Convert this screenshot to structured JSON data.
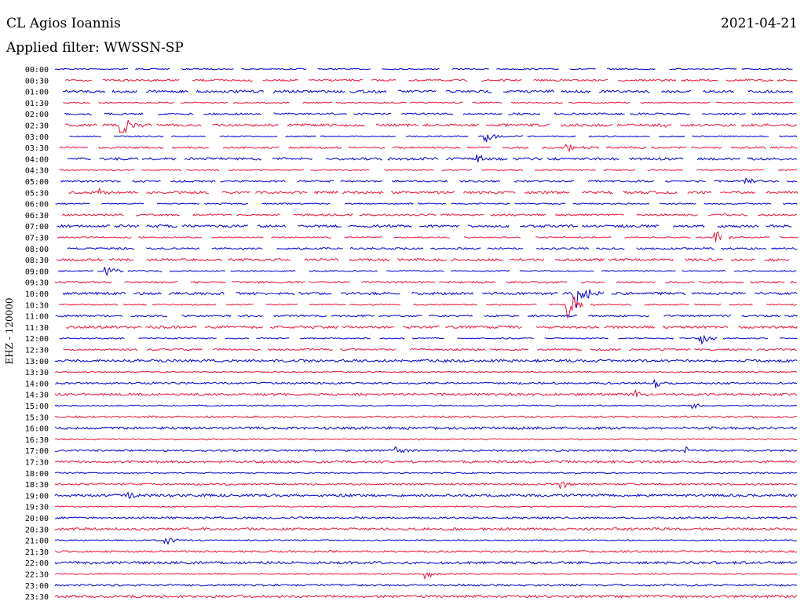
{
  "header": {
    "station": "CL Agios Ioannis",
    "date": "2021-04-21",
    "filter": "Applied filter: WWSSN-SP",
    "channel_label": "EHZ - 120000"
  },
  "colors": {
    "odd": "#0000cc",
    "even": "#e8163c"
  },
  "chart_data": {
    "type": "line",
    "title": "",
    "ylabel": "EHZ - 120000",
    "rows": [
      "00:00",
      "00:30",
      "01:00",
      "01:30",
      "02:00",
      "02:30",
      "03:00",
      "03:30",
      "04:00",
      "04:30",
      "05:00",
      "05:30",
      "06:00",
      "06:30",
      "07:00",
      "07:30",
      "08:00",
      "08:30",
      "09:00",
      "09:30",
      "10:00",
      "10:30",
      "11:00",
      "11:30",
      "12:00",
      "12:30",
      "13:00",
      "13:30",
      "14:00",
      "14:30",
      "15:00",
      "15:30",
      "16:00",
      "16:30",
      "17:00",
      "17:30",
      "18:00",
      "18:30",
      "19:00",
      "19:30",
      "20:00",
      "20:30",
      "21:00",
      "21:30",
      "22:00",
      "22:30",
      "23:00",
      "23:30"
    ],
    "series_colors": [
      "blue",
      "red"
    ],
    "gapped_until_row": "12:30",
    "events": [
      {
        "row": "02:30",
        "x": 0.09,
        "amp": 14
      },
      {
        "row": "03:00",
        "x": 0.58,
        "amp": 8
      },
      {
        "row": "03:30",
        "x": 0.69,
        "amp": 6
      },
      {
        "row": "04:00",
        "x": 0.57,
        "amp": 6
      },
      {
        "row": "02:30",
        "x": 0.81,
        "amp": 5
      },
      {
        "row": "05:00",
        "x": 0.93,
        "amp": 5
      },
      {
        "row": "05:30",
        "x": 0.06,
        "amp": 6
      },
      {
        "row": "07:30",
        "x": 0.89,
        "amp": 9
      },
      {
        "row": "09:00",
        "x": 0.07,
        "amp": 7
      },
      {
        "row": "10:00",
        "x": 0.7,
        "amp": 30
      },
      {
        "row": "10:30",
        "x": 0.69,
        "amp": 22
      },
      {
        "row": "12:00",
        "x": 0.87,
        "amp": 8
      },
      {
        "row": "14:00",
        "x": 0.81,
        "amp": 6
      },
      {
        "row": "14:30",
        "x": 0.78,
        "amp": 6
      },
      {
        "row": "15:00",
        "x": 0.86,
        "amp": 5
      },
      {
        "row": "17:00",
        "x": 0.46,
        "amp": 4
      },
      {
        "row": "17:00",
        "x": 0.85,
        "amp": 4
      },
      {
        "row": "18:30",
        "x": 0.68,
        "amp": 8
      },
      {
        "row": "19:00",
        "x": 0.1,
        "amp": 4
      },
      {
        "row": "21:00",
        "x": 0.15,
        "amp": 6
      },
      {
        "row": "22:30",
        "x": 0.5,
        "amp": 6
      }
    ]
  }
}
